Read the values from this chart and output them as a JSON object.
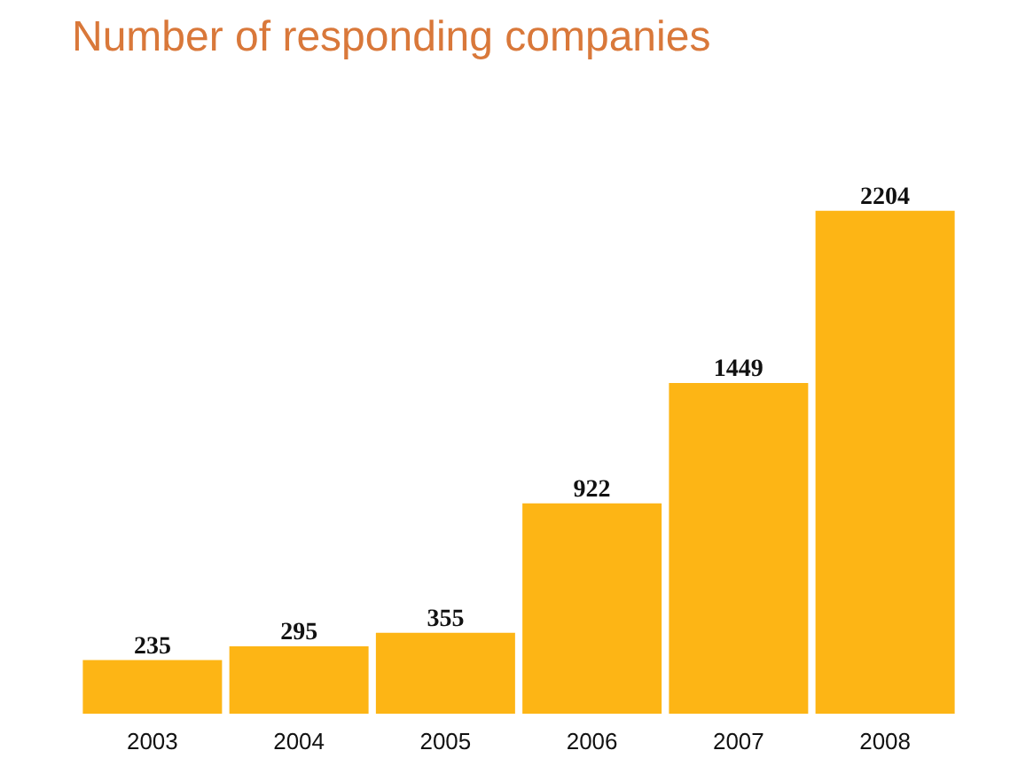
{
  "chart_data": {
    "type": "bar",
    "title": "Number of responding companies",
    "categories": [
      "2003",
      "2004",
      "2005",
      "2006",
      "2007",
      "2008"
    ],
    "values": [
      235,
      295,
      355,
      922,
      1449,
      2204
    ],
    "color": "#fdb515",
    "data_labels": true
  }
}
